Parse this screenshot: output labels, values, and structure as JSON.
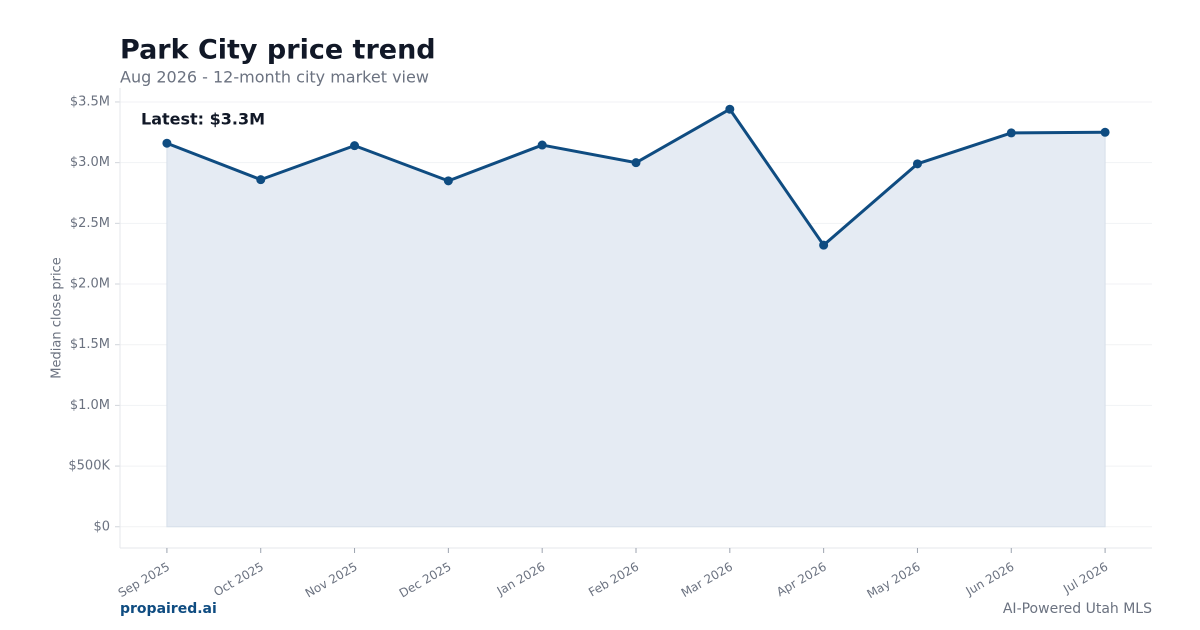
{
  "chart_data": {
    "type": "line",
    "title": "Park City price trend",
    "subtitle": "Aug 2026 - 12-month city market view",
    "y_label": "Median close price",
    "annotation": "Latest: $3.3M",
    "categories": [
      "Sep 2025",
      "Oct 2025",
      "Nov 2025",
      "Dec 2025",
      "Jan 2026",
      "Feb 2026",
      "Mar 2026",
      "Apr 2026",
      "May 2026",
      "Jun 2026",
      "Jul 2026"
    ],
    "series": [
      {
        "color": "#0f4c81",
        "fill": "#e5ebf3",
        "values": [
          3160000,
          2860000,
          3140000,
          2850000,
          3145000,
          3000000,
          3440000,
          2320000,
          2990000,
          3245000,
          3250000
        ]
      }
    ],
    "ylim": [
      -175000,
      3615000
    ],
    "yticks": [
      {
        "value": 0,
        "label": "$0"
      },
      {
        "value": 500000,
        "label": "$500K"
      },
      {
        "value": 1000000,
        "label": "$1.0M"
      },
      {
        "value": 1500000,
        "label": "$1.5M"
      },
      {
        "value": 2000000,
        "label": "$2.0M"
      },
      {
        "value": 2500000,
        "label": "$2.5M"
      },
      {
        "value": 3000000,
        "label": "$3.0M"
      },
      {
        "value": 3500000,
        "label": "$3.5M"
      }
    ],
    "grid": true,
    "footer_left": "propaired.ai",
    "footer_right": "AI-Powered Utah MLS"
  }
}
